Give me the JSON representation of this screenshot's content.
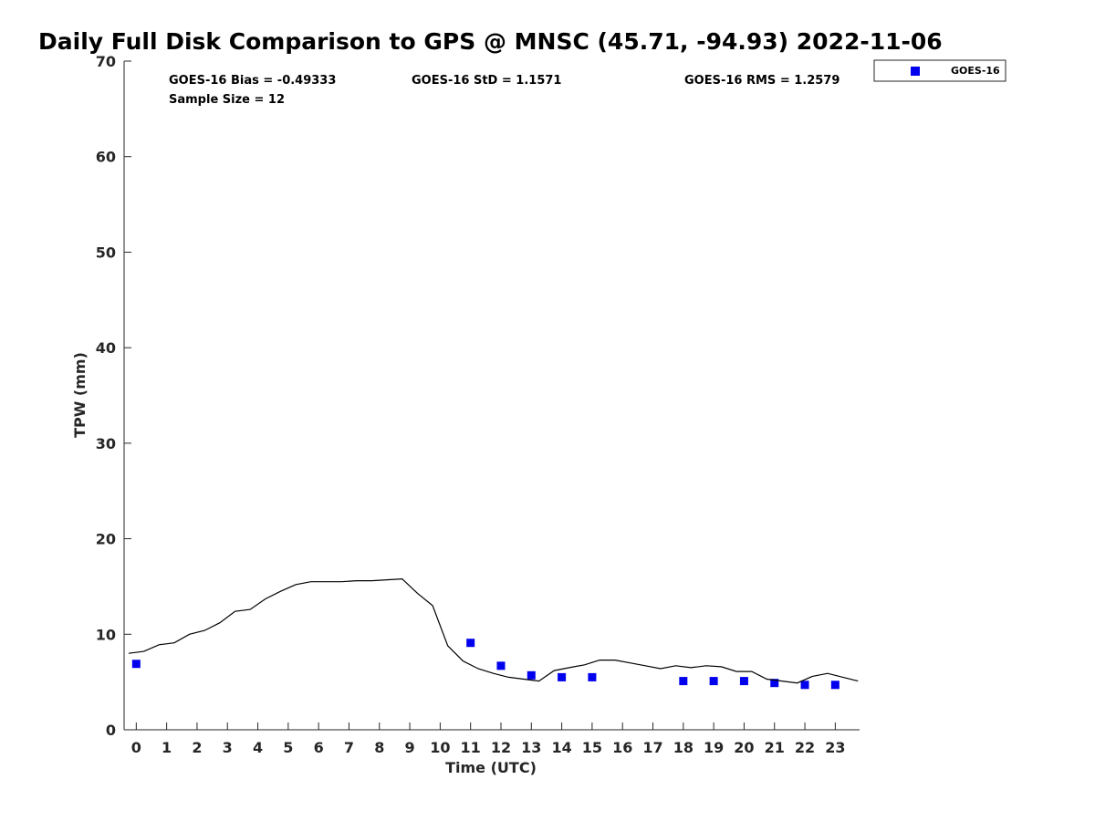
{
  "chart_data": {
    "type": "scatter",
    "title": "Daily Full Disk Comparison to GPS @ MNSC (45.71, -94.93) 2022-11-06",
    "xlabel": "Time (UTC)",
    "ylabel": "TPW (mm)",
    "xlim": [
      -0.4,
      23.8
    ],
    "ylim": [
      0,
      70
    ],
    "xticks": [
      0,
      1,
      2,
      3,
      4,
      5,
      6,
      7,
      8,
      9,
      10,
      11,
      12,
      13,
      14,
      15,
      16,
      17,
      18,
      19,
      20,
      21,
      22,
      23
    ],
    "yticks": [
      0,
      10,
      20,
      30,
      40,
      50,
      60,
      70
    ],
    "grid": false,
    "legend_position": "top-right",
    "stats": {
      "bias": "GOES-16 Bias = -0.49333",
      "std": "GOES-16 StD = 1.1571",
      "rms": "GOES-16 RMS = 1.2579",
      "sample": "Sample Size = 12"
    },
    "series": [
      {
        "name": "GOES-16",
        "marker": "square",
        "color": "#0000ee",
        "x": [
          0,
          11,
          12,
          13,
          14,
          15,
          18,
          19,
          20,
          21,
          22,
          23
        ],
        "y": [
          6.9,
          9.1,
          6.7,
          5.7,
          5.5,
          5.5,
          5.1,
          5.1,
          5.1,
          4.9,
          4.7,
          4.7
        ]
      },
      {
        "marker": "line",
        "color": "#000000",
        "x": [
          -0.25,
          0.25,
          0.75,
          1.25,
          1.75,
          2.25,
          2.75,
          3.25,
          3.75,
          4.25,
          4.75,
          5.25,
          5.75,
          6.25,
          6.75,
          7.25,
          7.75,
          8.25,
          8.75,
          9.25,
          9.75,
          10.25,
          10.75,
          11.25,
          11.75,
          12.25,
          12.75,
          13.25,
          13.75,
          14.25,
          14.75,
          15.25,
          15.75,
          16.25,
          16.75,
          17.25,
          17.75,
          18.25,
          18.75,
          19.25,
          19.75,
          20.25,
          20.75,
          21.25,
          21.75,
          22.25,
          22.75,
          23.25,
          23.75
        ],
        "y": [
          8.0,
          8.2,
          8.9,
          9.1,
          10.0,
          10.4,
          11.2,
          12.4,
          12.6,
          13.7,
          14.5,
          15.2,
          15.5,
          15.5,
          15.5,
          15.6,
          15.6,
          15.7,
          15.8,
          14.3,
          13.0,
          8.8,
          7.2,
          6.4,
          5.9,
          5.5,
          5.3,
          5.1,
          6.2,
          6.5,
          6.8,
          7.3,
          7.3,
          7.0,
          6.7,
          6.4,
          6.7,
          6.5,
          6.7,
          6.6,
          6.1,
          6.1,
          5.3,
          5.1,
          4.9,
          5.6,
          5.9,
          5.5,
          5.1
        ]
      }
    ]
  }
}
